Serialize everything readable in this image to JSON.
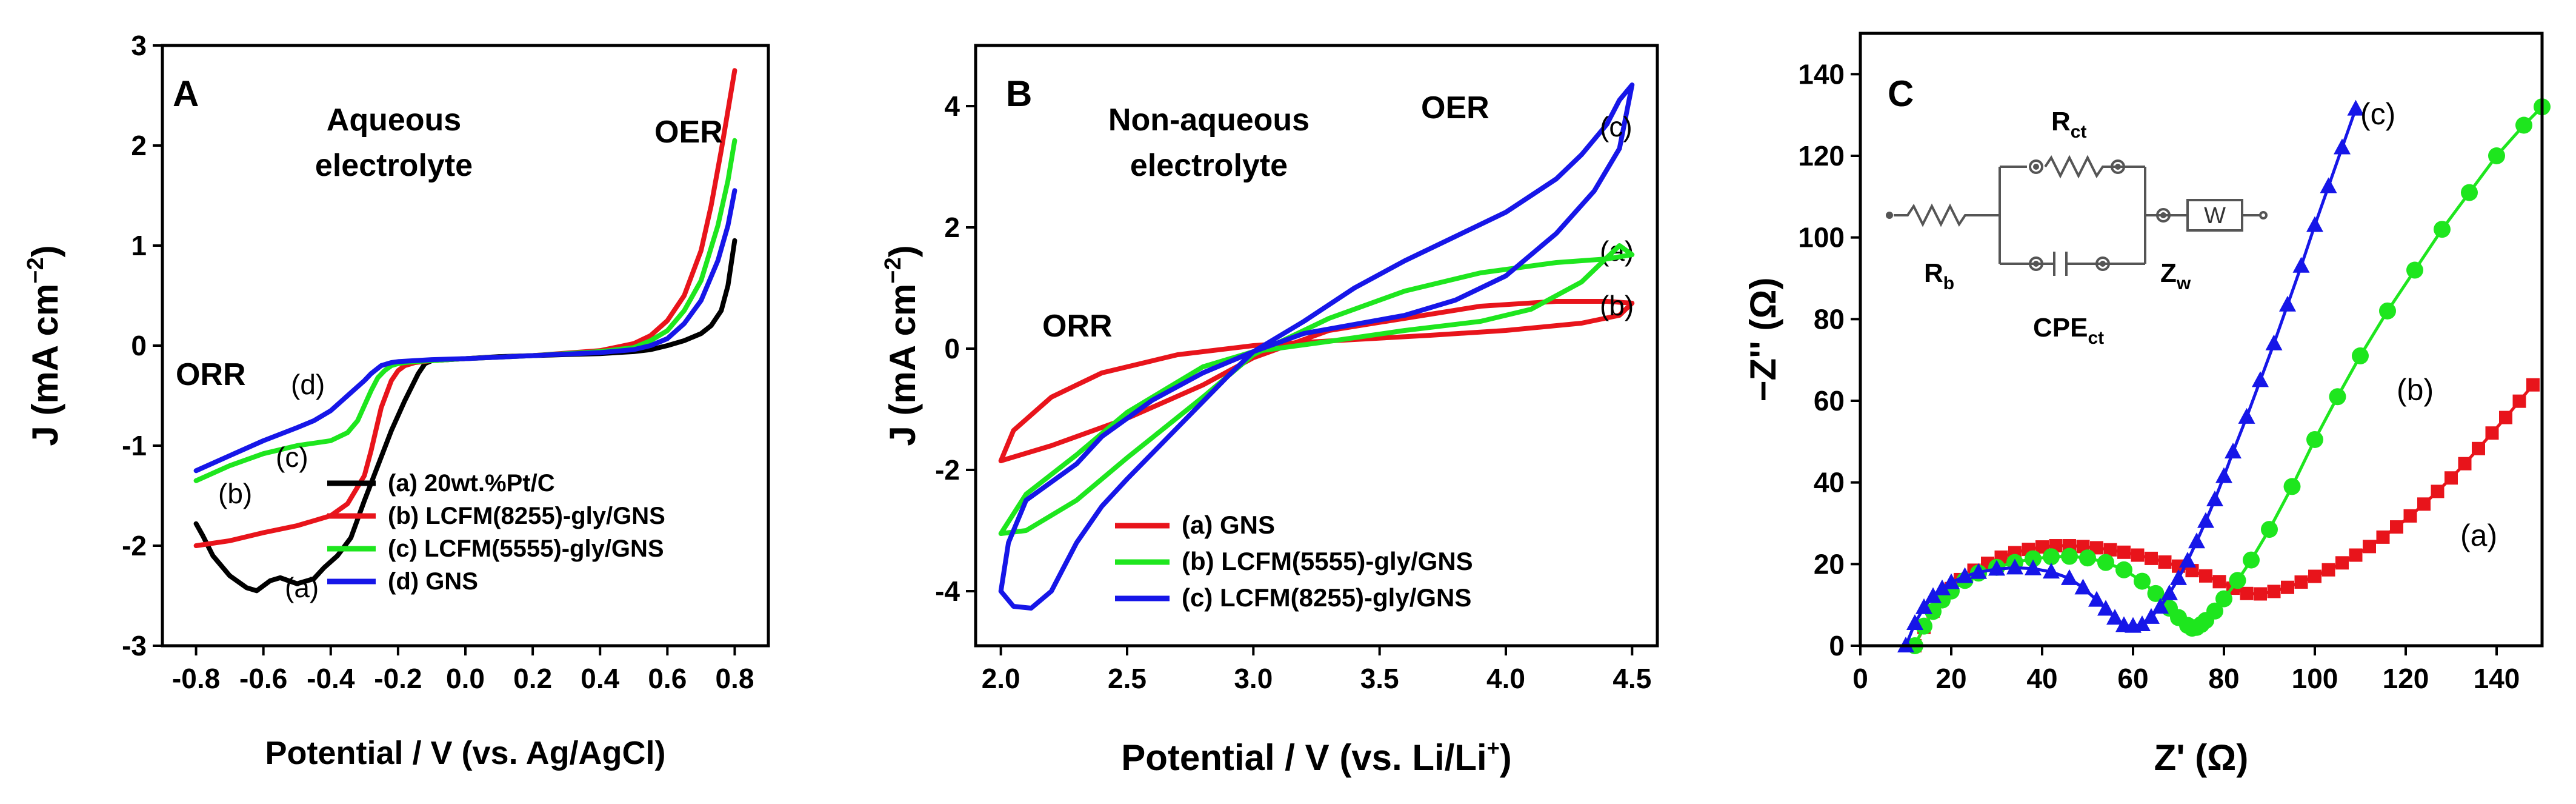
{
  "chart_data": [
    {
      "panel": "A",
      "type": "line",
      "title_lines": [
        "Aqueous",
        "electrolyte"
      ],
      "annotations": [
        "OER",
        "ORR"
      ],
      "xlabel": "Potential / V (vs. Ag/AgCl)",
      "ylabel": "J (mA cm",
      "ylabel_sup": "−2",
      "ylabel_close": ")",
      "xlim": [
        -0.9,
        0.9
      ],
      "ylim": [
        -3,
        3
      ],
      "xticks": [
        -0.8,
        -0.6,
        -0.4,
        -0.2,
        0.0,
        0.2,
        0.4,
        0.6,
        0.8
      ],
      "xtick_labels": [
        "-0.8",
        "-0.6",
        "-0.4",
        "-0.2",
        "0.0",
        "0.2",
        "0.4",
        "0.6",
        "0.8"
      ],
      "yticks": [
        -3,
        -2,
        -1,
        0,
        1,
        2,
        3
      ],
      "ytick_labels": [
        "-3",
        "-2",
        "-1",
        "0",
        "1",
        "2",
        "3"
      ],
      "series": [
        {
          "id": "a",
          "name": "(a) 20wt.%Pt/C",
          "color": "#000000",
          "tag": "(a)",
          "x": [
            -0.8,
            -0.78,
            -0.75,
            -0.7,
            -0.65,
            -0.62,
            -0.58,
            -0.55,
            -0.5,
            -0.45,
            -0.42,
            -0.38,
            -0.34,
            -0.3,
            -0.26,
            -0.22,
            -0.18,
            -0.14,
            -0.12,
            -0.1,
            -0.05,
            0.0,
            0.1,
            0.2,
            0.3,
            0.4,
            0.5,
            0.55,
            0.6,
            0.65,
            0.7,
            0.73,
            0.76,
            0.78,
            0.8
          ],
          "y": [
            -1.78,
            -1.9,
            -2.1,
            -2.3,
            -2.42,
            -2.45,
            -2.35,
            -2.32,
            -2.38,
            -2.33,
            -2.22,
            -2.1,
            -1.92,
            -1.55,
            -1.2,
            -0.85,
            -0.55,
            -0.28,
            -0.18,
            -0.15,
            -0.14,
            -0.13,
            -0.11,
            -0.1,
            -0.09,
            -0.08,
            -0.06,
            -0.04,
            0.0,
            0.05,
            0.12,
            0.2,
            0.35,
            0.6,
            1.05
          ]
        },
        {
          "id": "b",
          "name": "(b) LCFM(8255)-gly/GNS",
          "color": "#e8141b",
          "tag": "(b)",
          "x": [
            -0.8,
            -0.7,
            -0.6,
            -0.5,
            -0.45,
            -0.4,
            -0.35,
            -0.3,
            -0.28,
            -0.25,
            -0.22,
            -0.2,
            -0.18,
            -0.15,
            -0.1,
            0.0,
            0.2,
            0.4,
            0.5,
            0.55,
            0.6,
            0.65,
            0.7,
            0.73,
            0.76,
            0.78,
            0.8
          ],
          "y": [
            -2.0,
            -1.95,
            -1.87,
            -1.8,
            -1.75,
            -1.7,
            -1.58,
            -1.3,
            -1.05,
            -0.62,
            -0.35,
            -0.25,
            -0.2,
            -0.17,
            -0.15,
            -0.13,
            -0.1,
            -0.05,
            0.02,
            0.1,
            0.25,
            0.5,
            0.95,
            1.4,
            1.95,
            2.35,
            2.75
          ]
        },
        {
          "id": "c",
          "name": "(c) LCFM(5555)-gly/GNS",
          "color": "#1ee61e",
          "tag": "(c)",
          "x": [
            -0.8,
            -0.7,
            -0.6,
            -0.5,
            -0.4,
            -0.35,
            -0.32,
            -0.3,
            -0.28,
            -0.26,
            -0.24,
            -0.22,
            -0.2,
            -0.18,
            -0.15,
            -0.1,
            0.0,
            0.2,
            0.4,
            0.5,
            0.55,
            0.6,
            0.65,
            0.7,
            0.75,
            0.78,
            0.8
          ],
          "y": [
            -1.35,
            -1.2,
            -1.08,
            -1.0,
            -0.95,
            -0.87,
            -0.75,
            -0.6,
            -0.45,
            -0.32,
            -0.25,
            -0.2,
            -0.18,
            -0.17,
            -0.16,
            -0.15,
            -0.13,
            -0.1,
            -0.06,
            -0.02,
            0.05,
            0.15,
            0.35,
            0.65,
            1.2,
            1.65,
            2.05
          ]
        },
        {
          "id": "d",
          "name": "(d) GNS",
          "color": "#1616e8",
          "tag": "(d)",
          "x": [
            -0.8,
            -0.7,
            -0.6,
            -0.5,
            -0.45,
            -0.4,
            -0.35,
            -0.3,
            -0.28,
            -0.25,
            -0.22,
            -0.2,
            -0.15,
            -0.1,
            0.0,
            0.2,
            0.4,
            0.5,
            0.55,
            0.6,
            0.65,
            0.7,
            0.75,
            0.78,
            0.8
          ],
          "y": [
            -1.25,
            -1.1,
            -0.95,
            -0.82,
            -0.75,
            -0.65,
            -0.5,
            -0.35,
            -0.28,
            -0.2,
            -0.17,
            -0.16,
            -0.15,
            -0.14,
            -0.13,
            -0.1,
            -0.07,
            -0.04,
            0.0,
            0.07,
            0.22,
            0.45,
            0.85,
            1.2,
            1.55
          ]
        }
      ]
    },
    {
      "panel": "B",
      "type": "line",
      "title_lines": [
        "Non-aqueous",
        "electrolyte"
      ],
      "annotations": [
        "OER",
        "ORR"
      ],
      "xlabel": "Potential / V (vs. Li/Li",
      "xlabel_sup": "+",
      "xlabel_close": ")",
      "ylabel": "J (mA cm",
      "ylabel_sup": "−2",
      "ylabel_close": ")",
      "xlim": [
        1.9,
        4.6
      ],
      "ylim": [
        -4.9,
        5.0
      ],
      "xticks": [
        2.0,
        2.5,
        3.0,
        3.5,
        4.0,
        4.5
      ],
      "xtick_labels": [
        "2.0",
        "2.5",
        "3.0",
        "3.5",
        "4.0",
        "4.5"
      ],
      "yticks": [
        -4,
        -2,
        0,
        2,
        4
      ],
      "ytick_labels": [
        "-4",
        "-2",
        "0",
        "2",
        "4"
      ],
      "series": [
        {
          "id": "a",
          "name": "(a) GNS",
          "color": "#e8141b",
          "tag": "(a)",
          "x": [
            2.0,
            2.2,
            2.5,
            2.8,
            3.0,
            3.3,
            3.6,
            3.9,
            4.2,
            4.4,
            4.5,
            4.45,
            4.3,
            4.0,
            3.7,
            3.4,
            3.1,
            3.0,
            2.7,
            2.4,
            2.2,
            2.05,
            2.0
          ],
          "y": [
            -1.85,
            -1.6,
            -1.15,
            -0.6,
            -0.15,
            0.3,
            0.5,
            0.7,
            0.78,
            0.78,
            0.75,
            0.55,
            0.42,
            0.3,
            0.22,
            0.15,
            0.08,
            0.05,
            -0.1,
            -0.4,
            -0.8,
            -1.35,
            -1.85
          ]
        },
        {
          "id": "b",
          "name": "(b) LCFM(5555)-gly/GNS",
          "color": "#1ee61e",
          "tag": "(b)",
          "x": [
            2.0,
            2.1,
            2.3,
            2.5,
            2.8,
            3.0,
            3.3,
            3.6,
            3.9,
            4.2,
            4.4,
            4.5,
            4.45,
            4.3,
            4.1,
            3.9,
            3.6,
            3.3,
            3.0,
            2.8,
            2.5,
            2.3,
            2.1,
            2.0
          ],
          "y": [
            -3.05,
            -3.0,
            -2.5,
            -1.8,
            -0.8,
            -0.1,
            0.5,
            0.95,
            1.25,
            1.42,
            1.48,
            1.55,
            1.7,
            1.1,
            0.65,
            0.45,
            0.3,
            0.12,
            -0.05,
            -0.3,
            -1.05,
            -1.75,
            -2.4,
            -3.05
          ]
        },
        {
          "id": "c",
          "name": "(c) LCFM(8255)-gly/GNS",
          "color": "#1616e8",
          "tag": "(c)",
          "x": [
            2.0,
            2.05,
            2.12,
            2.2,
            2.25,
            2.3,
            2.4,
            2.5,
            2.7,
            2.9,
            3.0,
            3.2,
            3.4,
            3.6,
            3.8,
            4.0,
            4.2,
            4.35,
            4.45,
            4.5,
            4.45,
            4.4,
            4.3,
            4.2,
            4.0,
            3.8,
            3.6,
            3.4,
            3.2,
            3.0,
            2.8,
            2.6,
            2.4,
            2.3,
            2.2,
            2.1,
            2.03,
            2.0
          ],
          "y": [
            -4.0,
            -4.25,
            -4.28,
            -4.0,
            -3.6,
            -3.2,
            -2.6,
            -2.15,
            -1.3,
            -0.45,
            -0.05,
            0.25,
            0.4,
            0.55,
            0.8,
            1.2,
            1.9,
            2.6,
            3.3,
            4.35,
            4.1,
            3.7,
            3.2,
            2.8,
            2.25,
            1.85,
            1.45,
            1.0,
            0.45,
            -0.05,
            -0.4,
            -0.85,
            -1.45,
            -1.9,
            -2.2,
            -2.5,
            -3.2,
            -4.0
          ]
        }
      ]
    },
    {
      "panel": "C",
      "type": "scatter",
      "xlabel": "Z' (Ω)",
      "ylabel": "−Z'' (Ω)",
      "xlim": [
        0,
        150
      ],
      "ylim": [
        0,
        150
      ],
      "xticks": [
        0,
        20,
        40,
        60,
        80,
        100,
        120,
        140
      ],
      "xtick_labels": [
        "0",
        "20",
        "40",
        "60",
        "80",
        "100",
        "120",
        "140"
      ],
      "yticks": [
        0,
        20,
        40,
        60,
        80,
        100,
        120,
        140
      ],
      "ytick_labels": [
        "0",
        "20",
        "40",
        "60",
        "80",
        "100",
        "120",
        "140"
      ],
      "circuit_labels": {
        "rb": "R",
        "rb_sub": "b",
        "rct": "R",
        "rct_sub": "ct",
        "cpe": "CPE",
        "cpe_sub": "ct",
        "zw": "Z",
        "zw_sub": "w",
        "w_box": "W"
      },
      "series": [
        {
          "id": "a",
          "name": "(a)",
          "marker": "square",
          "color": "#e8141b",
          "tag": "(a)",
          "x": [
            12,
            14,
            16,
            18,
            20,
            22,
            25,
            28,
            31,
            34,
            37,
            40,
            43,
            46,
            49,
            52,
            55,
            58,
            61,
            64,
            67,
            70,
            73,
            76,
            79,
            82,
            85,
            88,
            91,
            94,
            97,
            100,
            103,
            106,
            109,
            112,
            115,
            118,
            121,
            124,
            127,
            130,
            133,
            136,
            139,
            142,
            145,
            148
          ],
          "y": [
            0,
            4.5,
            8.5,
            11.5,
            14,
            16.2,
            18.5,
            20.2,
            21.7,
            22.8,
            23.6,
            24.2,
            24.5,
            24.5,
            24.3,
            24,
            23.5,
            22.9,
            22.2,
            21.4,
            20.5,
            19.5,
            18.4,
            17.1,
            15.7,
            14.1,
            12.8,
            12.7,
            13.3,
            14.3,
            15.6,
            17,
            18.6,
            20.3,
            22.2,
            24.3,
            26.6,
            29.1,
            31.8,
            34.7,
            37.8,
            41.1,
            44.6,
            48.3,
            52.1,
            55.9,
            59.9,
            63.9
          ]
        },
        {
          "id": "b",
          "name": "(b)",
          "marker": "circle",
          "color": "#1ee61e",
          "tag": "(b)",
          "x": [
            12,
            14,
            16,
            18,
            20,
            23,
            26,
            30,
            34,
            38,
            42,
            46,
            50,
            54,
            58,
            62,
            65,
            68,
            70,
            72,
            73,
            74,
            75,
            76,
            78,
            80,
            83,
            86,
            90,
            95,
            100,
            105,
            110,
            116,
            122,
            128,
            134,
            140,
            146,
            150
          ],
          "y": [
            0,
            4.8,
            8.4,
            11.2,
            13.4,
            16,
            17.8,
            19.2,
            20.4,
            21.3,
            21.8,
            21.9,
            21.5,
            20.4,
            18.6,
            15.8,
            12.8,
            9.2,
            6.9,
            5,
            4.3,
            4.5,
            5.2,
            6.2,
            8.5,
            11.5,
            16,
            21,
            28.5,
            39,
            50.5,
            61,
            71,
            82,
            92,
            102,
            111,
            120,
            127.5,
            132
          ]
        },
        {
          "id": "c",
          "name": "(c)",
          "marker": "triangle",
          "color": "#1616e8",
          "tag": "(c)",
          "x": [
            10,
            12,
            14,
            16,
            18,
            20,
            23,
            26,
            30,
            34,
            38,
            42,
            46,
            49,
            52,
            54,
            56,
            58,
            60,
            62,
            64,
            66,
            68,
            70,
            72,
            74,
            76,
            78,
            80,
            82,
            85,
            88,
            91,
            94,
            97,
            100,
            103,
            106,
            109
          ],
          "y": [
            0,
            5.5,
            9.4,
            12.1,
            14,
            15.5,
            17,
            18,
            18.8,
            19.1,
            18.9,
            18.1,
            16.5,
            14.2,
            11.2,
            9,
            6.8,
            5,
            4.8,
            5.2,
            7,
            9.5,
            12.8,
            16.5,
            20.8,
            25.5,
            30.5,
            35.8,
            41.5,
            47.5,
            56,
            65,
            74,
            83.5,
            93,
            103,
            112.5,
            122,
            131.5
          ]
        }
      ]
    }
  ],
  "panels": {
    "a": {
      "letter": "A",
      "title_line1": "Aqueous",
      "title_line2": "electrolyte",
      "oer": "OER",
      "orr": "ORR"
    },
    "b": {
      "letter": "B",
      "title_line1": "Non-aqueous",
      "title_line2": "electrolyte",
      "oer": "OER",
      "orr": "ORR"
    },
    "c": {
      "letter": "C"
    }
  },
  "colors": {
    "black": "#000000",
    "red": "#e8141b",
    "green": "#1ee61e",
    "blue": "#1616e8"
  }
}
